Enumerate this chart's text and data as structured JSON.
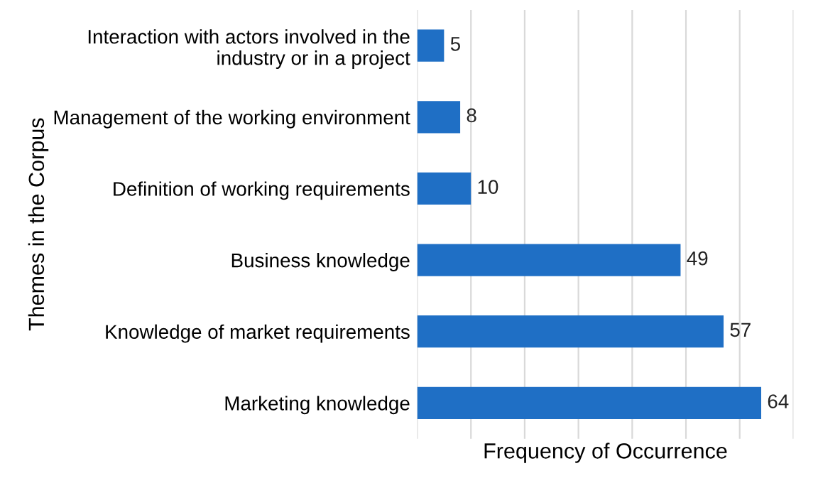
{
  "chart_data": {
    "type": "bar",
    "orientation": "horizontal",
    "categories": [
      "Interaction with actors involved in the\nindustry or in a project",
      "Management of the working environment",
      "Definition of working requirements",
      "Business knowledge",
      "Knowledge of market requirements",
      "Marketing knowledge"
    ],
    "values": [
      5,
      8,
      10,
      49,
      57,
      64
    ],
    "color": "#1f6fc5",
    "xlabel": "Frequency of Occurrence",
    "ylabel": "Themes in the Corpus",
    "xlim": [
      0,
      70
    ],
    "xticks": [
      {
        "value": 0,
        "label": null
      },
      {
        "value": 10,
        "label": null
      },
      {
        "value": 20,
        "label": null
      },
      {
        "value": 30,
        "label": null
      },
      {
        "value": 40,
        "label": null
      },
      {
        "value": 50,
        "label": null
      },
      {
        "value": 60,
        "label": null
      },
      {
        "value": 70,
        "label": null
      }
    ],
    "grid": "x",
    "tick_labels": "y",
    "data_labels": true
  }
}
